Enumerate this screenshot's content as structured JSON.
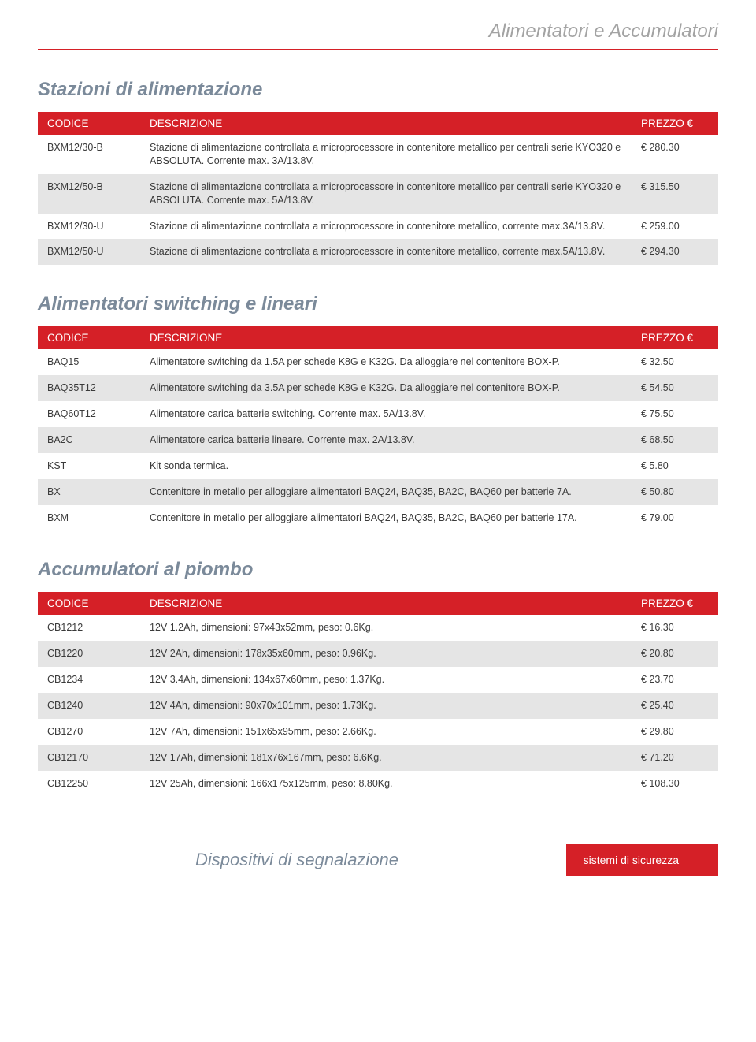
{
  "category_title": "Alimentatori e Accumulatori",
  "columns": {
    "code": "CODICE",
    "desc": "DESCRIZIONE",
    "price": "PREZZO €"
  },
  "sections": [
    {
      "title": "Stazioni di alimentazione",
      "rows": [
        {
          "code": "BXM12/30-B",
          "desc": "Stazione di alimentazione controllata a microprocessore in contenitore metallico per centrali serie KYO320 e ABSOLUTA. Corrente max. 3A/13.8V.",
          "price": "€ 280.30"
        },
        {
          "code": "BXM12/50-B",
          "desc": "Stazione di alimentazione controllata a microprocessore in contenitore metallico per centrali serie KYO320 e ABSOLUTA. Corrente max. 5A/13.8V.",
          "price": "€ 315.50"
        },
        {
          "code": "BXM12/30-U",
          "desc": "Stazione di alimentazione controllata a microprocessore in contenitore metallico, corrente max.3A/13.8V.",
          "price": "€ 259.00"
        },
        {
          "code": "BXM12/50-U",
          "desc": "Stazione di alimentazione controllata a microprocessore in contenitore metallico, corrente max.5A/13.8V.",
          "price": "€ 294.30"
        }
      ]
    },
    {
      "title": "Alimentatori switching e lineari",
      "rows": [
        {
          "code": "BAQ15",
          "desc": "Alimentatore switching da 1.5A per schede K8G e K32G. Da alloggiare nel contenitore BOX-P.",
          "price": "€ 32.50"
        },
        {
          "code": "BAQ35T12",
          "desc": "Alimentatore switching da 3.5A per schede K8G e K32G. Da alloggiare nel contenitore BOX-P.",
          "price": "€ 54.50"
        },
        {
          "code": "BAQ60T12",
          "desc": "Alimentatore carica batterie switching. Corrente max. 5A/13.8V.",
          "price": "€ 75.50"
        },
        {
          "code": "BA2C",
          "desc": "Alimentatore carica batterie lineare. Corrente max. 2A/13.8V.",
          "price": "€ 68.50"
        },
        {
          "code": "KST",
          "desc": "Kit sonda termica.",
          "price": "€ 5.80"
        },
        {
          "code": "BX",
          "desc": "Contenitore in metallo per alloggiare alimentatori BAQ24, BAQ35, BA2C, BAQ60 per batterie 7A.",
          "price": "€ 50.80"
        },
        {
          "code": "BXM",
          "desc": "Contenitore in metallo per alloggiare alimentatori BAQ24, BAQ35, BA2C, BAQ60 per batterie 17A.",
          "price": "€ 79.00"
        }
      ]
    },
    {
      "title": "Accumulatori al piombo",
      "rows": [
        {
          "code": "CB1212",
          "desc": "12V 1.2Ah, dimensioni: 97x43x52mm, peso: 0.6Kg.",
          "price": "€ 16.30"
        },
        {
          "code": "CB1220",
          "desc": "12V 2Ah, dimensioni: 178x35x60mm, peso: 0.96Kg.",
          "price": "€ 20.80"
        },
        {
          "code": "CB1234",
          "desc": "12V 3.4Ah, dimensioni: 134x67x60mm, peso: 1.37Kg.",
          "price": "€ 23.70"
        },
        {
          "code": "CB1240",
          "desc": "12V 4Ah, dimensioni: 90x70x101mm, peso: 1.73Kg.",
          "price": "€ 25.40"
        },
        {
          "code": "CB1270",
          "desc": "12V 7Ah, dimensioni: 151x65x95mm, peso: 2.66Kg.",
          "price": "€ 29.80"
        },
        {
          "code": "CB12170",
          "desc": "12V 17Ah, dimensioni: 181x76x167mm, peso: 6.6Kg.",
          "price": "€ 71.20"
        },
        {
          "code": "CB12250",
          "desc": "12V 25Ah, dimensioni: 166x175x125mm, peso: 8.80Kg.",
          "price": "€ 108.30"
        }
      ]
    }
  ],
  "footer": {
    "mid": "Dispositivi di segnalazione",
    "right": "sistemi di sicurezza"
  },
  "colors": {
    "accent": "#d52027",
    "muted_title": "#7b8a9a",
    "category_grey": "#a3a3a3",
    "row_alt": "#e5e5e5",
    "text": "#3a3a3a",
    "background": "#ffffff"
  }
}
